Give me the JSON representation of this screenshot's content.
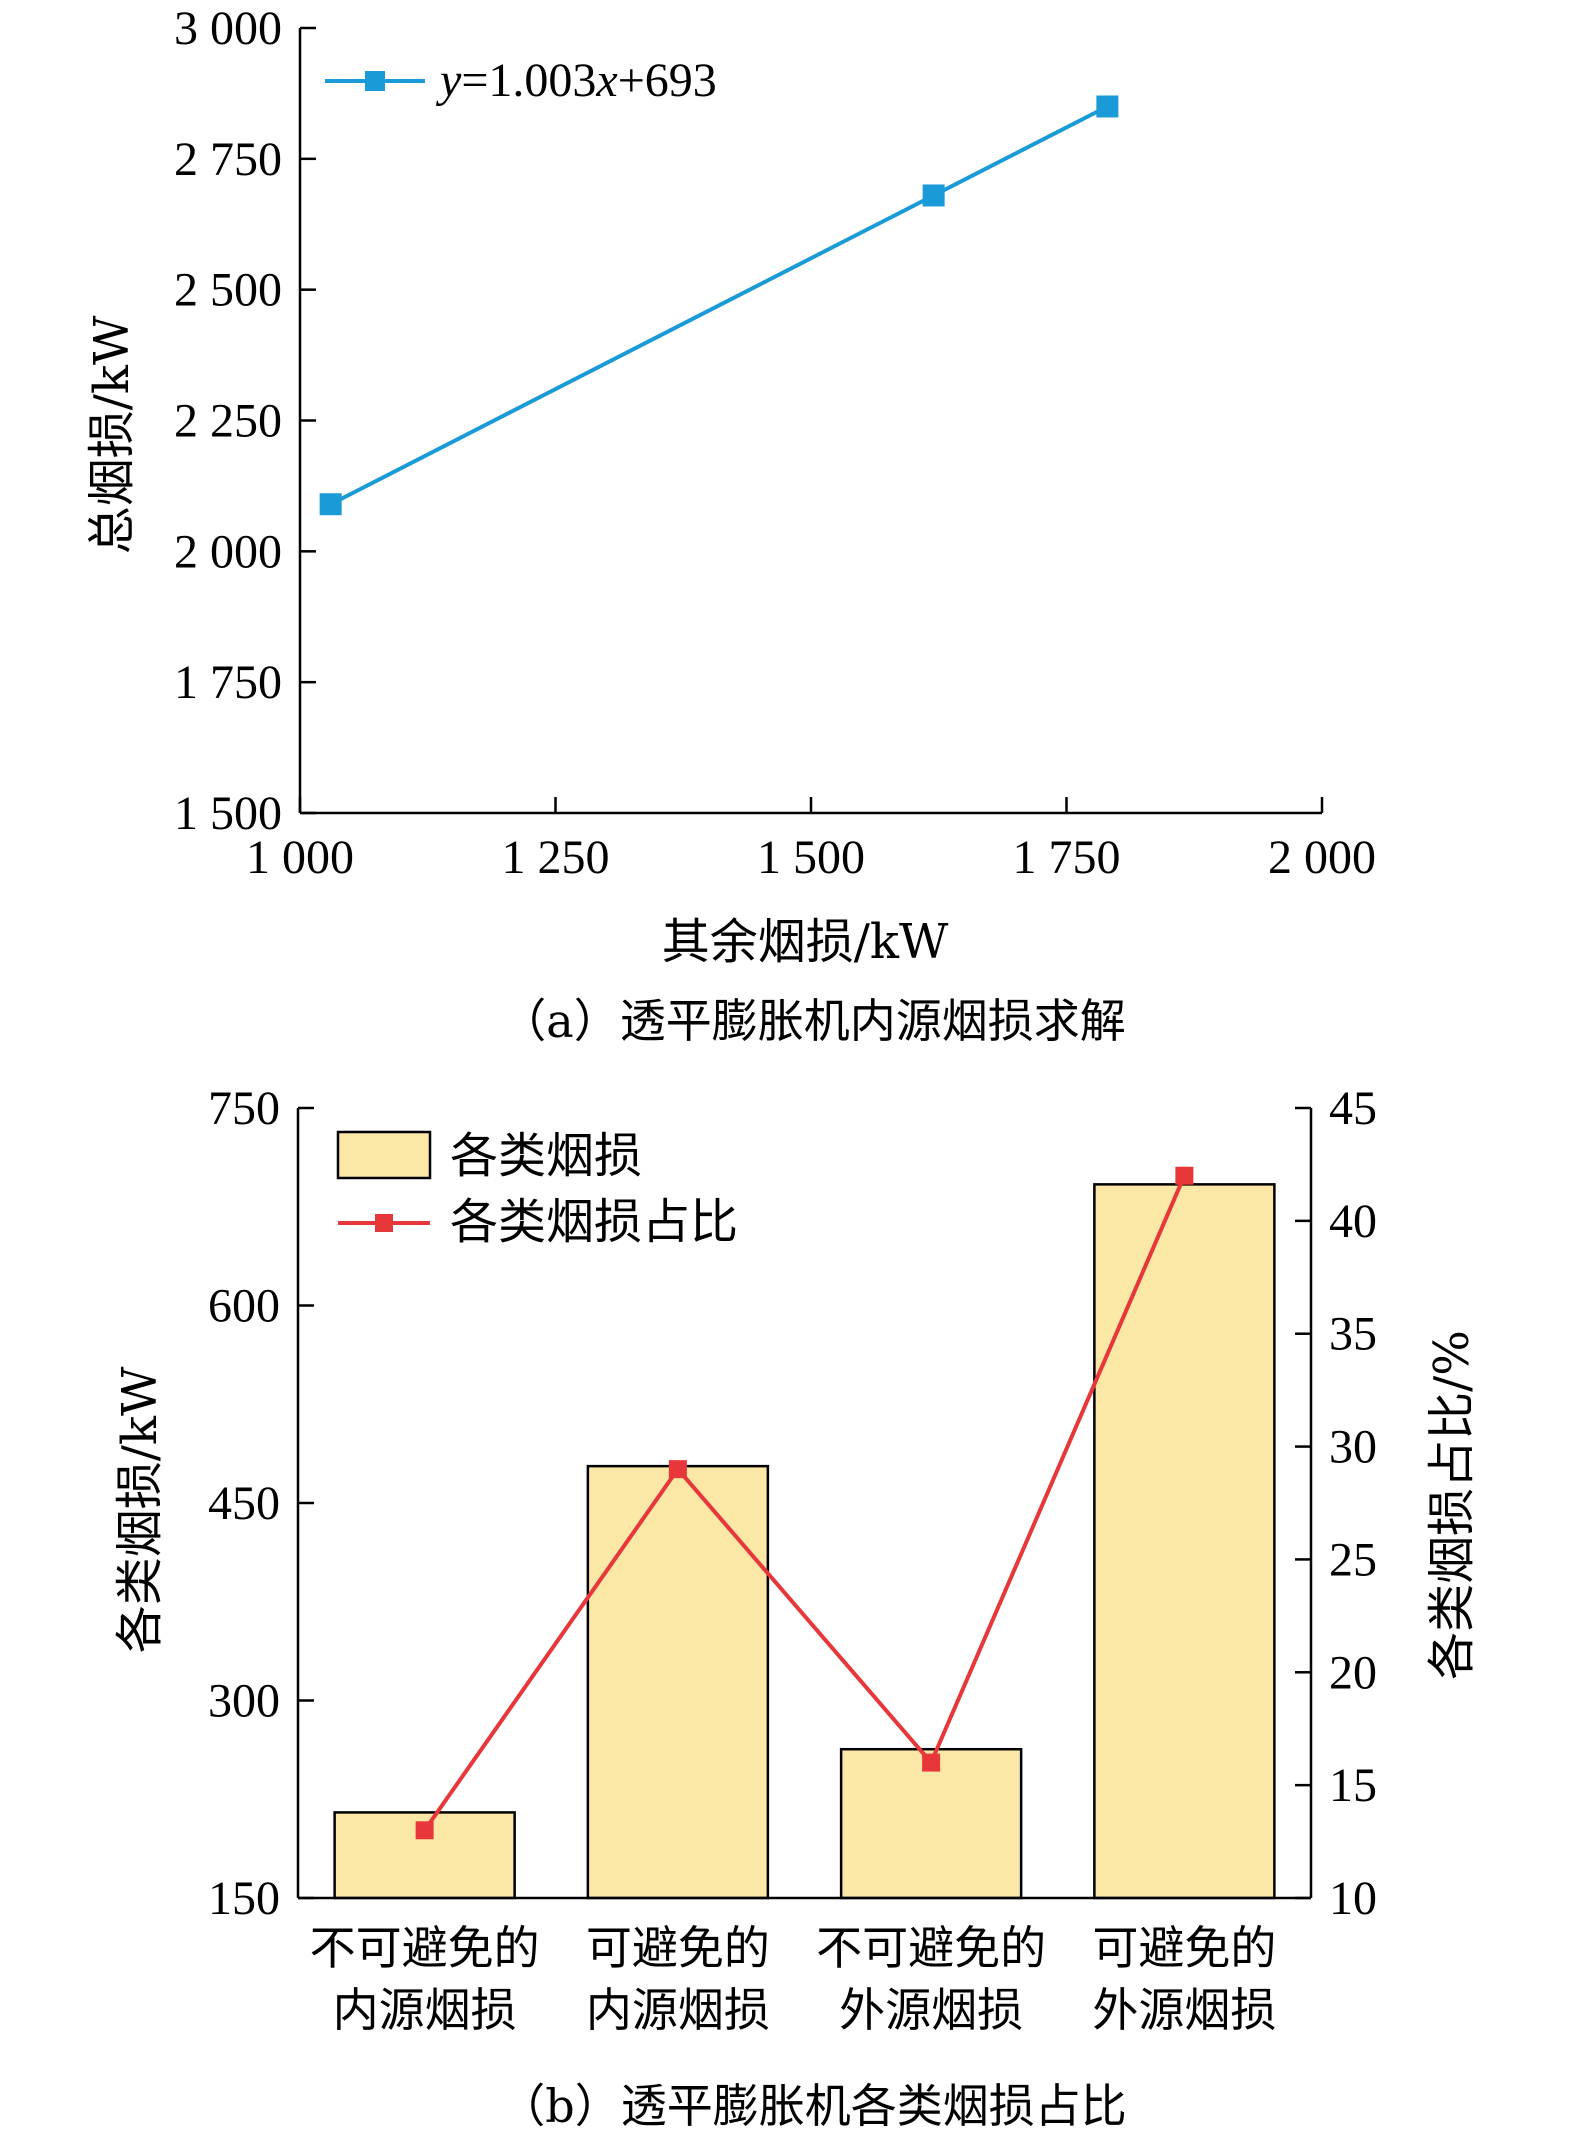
{
  "chart_data": [
    {
      "type": "line",
      "caption": "（a）透平膨胀机内源烟损求解",
      "xlabel": "其余烟损/kW",
      "ylabel": "总烟损/kW",
      "xlim": [
        1000,
        2000
      ],
      "ylim": [
        1500,
        3000
      ],
      "xticks": [
        "1 000",
        "1 250",
        "1 500",
        "1 750",
        "2 000"
      ],
      "yticks": [
        "1 500",
        "1 750",
        "2 000",
        "2 250",
        "2 500",
        "2 750",
        "3 000"
      ],
      "legend_placement": "top-left",
      "series": [
        {
          "name": "y=1.003x+693",
          "name_parts": {
            "y": "y",
            "mid": "=1.003",
            "x": "x",
            "tail": "+693"
          },
          "color": "#1a9bd7",
          "marker": "square",
          "points": [
            {
              "x": 1030,
              "y": 2090
            },
            {
              "x": 1620,
              "y": 2680
            },
            {
              "x": 1790,
              "y": 2850
            }
          ]
        }
      ]
    },
    {
      "type": "bar",
      "caption": "（b）透平膨胀机各类烟损占比",
      "ylabel": "各类烟损/kW",
      "ylabel_right": "各类烟损占比/%",
      "ylim": [
        150,
        750
      ],
      "ylim_right": [
        10,
        45
      ],
      "yticks": [
        "150",
        "300",
        "450",
        "600",
        "750"
      ],
      "yticks_right": [
        "10",
        "15",
        "20",
        "25",
        "30",
        "35",
        "40",
        "45"
      ],
      "categories": [
        [
          "不可避免的",
          "内源烟损"
        ],
        [
          "可避免的",
          "内源烟损"
        ],
        [
          "不可避免的",
          "外源烟损"
        ],
        [
          "可避免的",
          "外源烟损"
        ]
      ],
      "legend_placement": "top-left",
      "series": [
        {
          "name": "各类烟损",
          "kind": "bar",
          "axis": "left",
          "color": "#fce8a6",
          "values": [
            215,
            478,
            263,
            692
          ]
        },
        {
          "name": "各类烟损占比",
          "kind": "line",
          "axis": "right",
          "color": "#e8373a",
          "marker": "square",
          "values": [
            13,
            29,
            16,
            42
          ]
        }
      ]
    }
  ]
}
